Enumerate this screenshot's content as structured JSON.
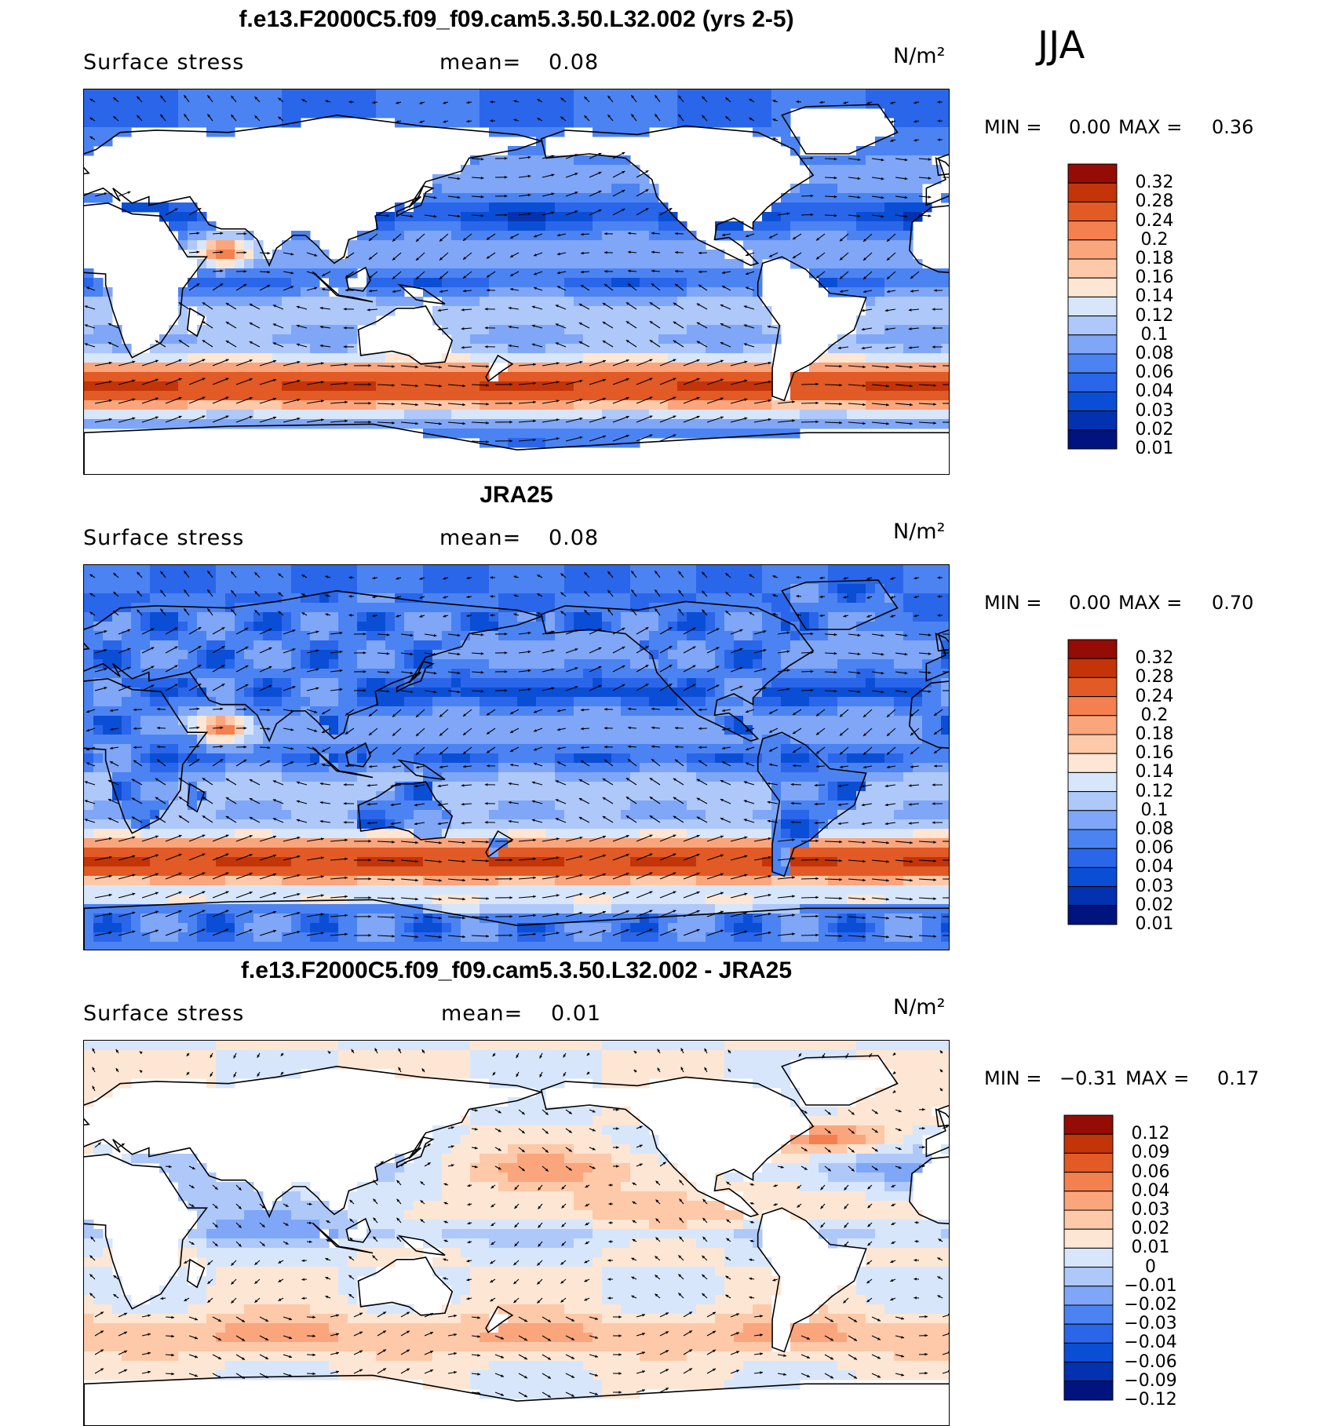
{
  "season": "JJA",
  "colors": {
    "seq": [
      "#00137f",
      "#0232b0",
      "#0b4ed6",
      "#2a66ea",
      "#4c83f2",
      "#7fa6f7",
      "#aec8fa",
      "#d7e6fb",
      "#fde6d4",
      "#fdc9a9",
      "#fba57c",
      "#f4804f",
      "#e25a25",
      "#c33409",
      "#940c05"
    ],
    "diff": [
      "#00137f",
      "#0232b0",
      "#0b4ed6",
      "#2a66ea",
      "#4c83f2",
      "#7fa6f7",
      "#aec8fa",
      "#d7e6fb",
      "#fde6d4",
      "#fdc9a9",
      "#fba57c",
      "#f4804f",
      "#e25a25",
      "#c33409",
      "#940c05"
    ]
  },
  "panels": [
    {
      "title": "f.e13.F2000C5.f09_f09.cam5.3.50.L32.002 (yrs 2-5)",
      "variable": "Surface stress",
      "mean_label": "mean=",
      "mean_value": "0.08",
      "units": "N/m²",
      "min_label": "MIN =",
      "min_value": "0.00",
      "max_label": "MAX =",
      "max_value": "0.36",
      "colorbar_labels": [
        "0.32",
        "0.28",
        "0.24",
        "0.2",
        "0.18",
        "0.16",
        "0.14",
        "0.12",
        "0.1",
        "0.08",
        "0.06",
        "0.04",
        "0.03",
        "0.02",
        "0.01"
      ]
    },
    {
      "title": "JRA25",
      "variable": "Surface stress",
      "mean_label": "mean=",
      "mean_value": "0.08",
      "units": "N/m²",
      "min_label": "MIN =",
      "min_value": "0.00",
      "max_label": "MAX =",
      "max_value": "0.70",
      "colorbar_labels": [
        "0.32",
        "0.28",
        "0.24",
        "0.2",
        "0.18",
        "0.16",
        "0.14",
        "0.12",
        "0.1",
        "0.08",
        "0.06",
        "0.04",
        "0.03",
        "0.02",
        "0.01"
      ]
    },
    {
      "title": "f.e13.F2000C5.f09_f09.cam5.3.50.L32.002 - JRA25",
      "variable": "Surface stress",
      "mean_label": "mean=",
      "mean_value": "0.01",
      "units": "N/m²",
      "min_label": "MIN =",
      "min_value": "−0.31",
      "max_label": "MAX =",
      "max_value": "0.17",
      "colorbar_labels": [
        "0.12",
        "0.09",
        "0.06",
        "0.04",
        "0.03",
        "0.02",
        "0.01",
        "0",
        "−0.01",
        "−0.02",
        "−0.03",
        "−0.04",
        "−0.06",
        "−0.09",
        "−0.12"
      ]
    }
  ]
}
